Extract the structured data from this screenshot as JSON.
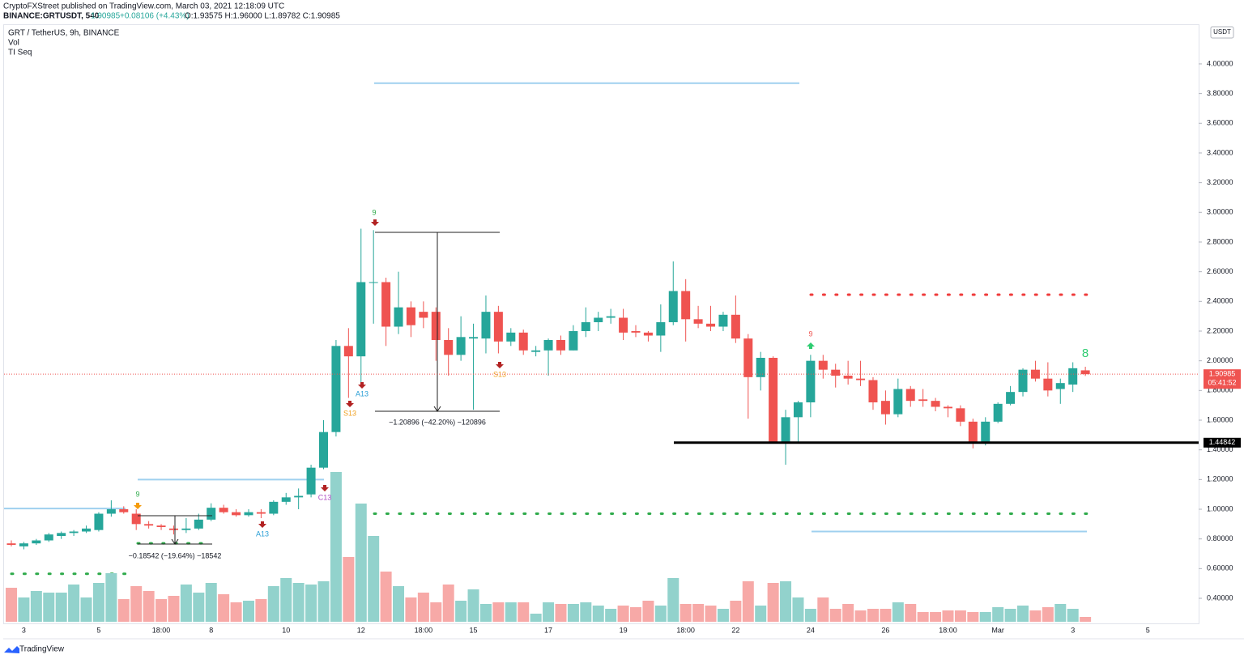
{
  "header": {
    "published": "CryptoFXStreet published on TradingView.com, March 03, 2021 12:18:09 UTC",
    "symbol": "BINANCE:GRTUSDT, 540",
    "last": "1.90985",
    "change": "+0.08106 (+4.43%)",
    "ohlc": "O:1.93575 H:1.96000 L:1.89782 C:1.90985"
  },
  "footer": {
    "brand": "TradingView"
  },
  "chart_data": {
    "type": "candlestick",
    "title": "GRT / TetherUS, 9h, BINANCE",
    "indicators": [
      "Vol",
      "TI Seq"
    ],
    "currency": "USDT",
    "categories": [
      null,
      "3",
      null,
      null,
      null,
      null,
      null,
      "5",
      null,
      null,
      null,
      null,
      "18:00",
      null,
      null,
      null,
      "8",
      null,
      null,
      null,
      null,
      null,
      "10",
      null,
      null,
      null,
      null,
      null,
      "12",
      null,
      null,
      null,
      null,
      "18:00",
      null,
      null,
      null,
      "15",
      null,
      null,
      null,
      null,
      null,
      "17",
      null,
      null,
      null,
      null,
      null,
      "19",
      null,
      null,
      null,
      null,
      "18:00",
      null,
      null,
      null,
      "22",
      null,
      null,
      null,
      null,
      null,
      "24",
      null,
      null,
      null,
      null,
      null,
      "26",
      null,
      null,
      null,
      null,
      "18:00",
      null,
      null,
      null,
      "Mar",
      null,
      null,
      null,
      null,
      null,
      "3",
      null,
      null,
      null,
      null,
      null,
      "5"
    ],
    "open": [
      0.77,
      0.75,
      0.77,
      0.79,
      0.82,
      0.84,
      0.85,
      0.86,
      0.97,
      1.0,
      0.97,
      0.9,
      0.89,
      0.87,
      0.86,
      0.87,
      0.93,
      1.01,
      0.98,
      0.96,
      0.98,
      0.97,
      1.05,
      1.08,
      1.1,
      1.28,
      1.52,
      2.1,
      2.03,
      2.53,
      2.53,
      2.23,
      2.36,
      2.33,
      2.33,
      2.14,
      2.04,
      2.15,
      2.15,
      2.33,
      2.13,
      2.19,
      2.06,
      2.07,
      2.14,
      2.07,
      2.2,
      2.26,
      2.29,
      2.29,
      2.2,
      2.19,
      2.17,
      2.26,
      2.47,
      2.28,
      2.25,
      2.23,
      2.31,
      2.15,
      1.89,
      2.02,
      1.45,
      1.62,
      1.72,
      2.0,
      1.94,
      1.9,
      1.88,
      1.87,
      1.73,
      1.64,
      1.81,
      1.74,
      1.73,
      1.69,
      1.68,
      1.59,
      1.45,
      1.59,
      1.71,
      1.79,
      1.94,
      1.88,
      1.81,
      1.84,
      1.93575,
      null,
      null,
      null,
      null,
      null
    ],
    "high": [
      0.79,
      0.78,
      0.8,
      0.84,
      0.85,
      0.86,
      0.89,
      0.98,
      1.06,
      1.02,
      1.0,
      0.92,
      0.9,
      0.89,
      0.94,
      0.97,
      1.04,
      1.03,
      1.0,
      1.0,
      1.0,
      1.06,
      1.11,
      1.14,
      1.3,
      1.6,
      2.14,
      2.22,
      2.89,
      2.88,
      2.56,
      2.6,
      2.4,
      2.4,
      2.36,
      2.22,
      2.3,
      2.25,
      2.44,
      2.37,
      2.22,
      2.21,
      2.1,
      2.15,
      2.17,
      2.24,
      2.36,
      2.33,
      2.35,
      2.35,
      2.24,
      2.2,
      2.38,
      2.67,
      2.55,
      2.37,
      2.37,
      2.33,
      2.44,
      2.18,
      2.06,
      2.03,
      1.67,
      1.73,
      2.04,
      2.04,
      1.98,
      2.0,
      2.0,
      1.89,
      1.8,
      1.88,
      1.83,
      1.81,
      1.75,
      1.7,
      1.7,
      1.61,
      1.62,
      1.72,
      1.83,
      1.95,
      2.0,
      1.99,
      1.88,
      1.99,
      1.96,
      null,
      null,
      null,
      null,
      null
    ],
    "low": [
      0.75,
      0.73,
      0.76,
      0.78,
      0.8,
      0.82,
      0.84,
      0.85,
      0.95,
      0.97,
      0.86,
      0.87,
      0.86,
      0.83,
      0.84,
      0.86,
      0.92,
      0.97,
      0.95,
      0.95,
      0.94,
      0.96,
      1.03,
      1.0,
      1.08,
      1.27,
      1.49,
      1.75,
      1.85,
      2.25,
      2.1,
      2.18,
      2.16,
      2.22,
      2.0,
      1.9,
      2.0,
      1.67,
      2.05,
      2.05,
      2.1,
      2.04,
      2.03,
      1.9,
      2.04,
      2.07,
      2.16,
      2.2,
      2.25,
      2.14,
      2.16,
      2.13,
      2.06,
      2.24,
      2.13,
      2.22,
      2.2,
      2.2,
      2.12,
      1.61,
      1.8,
      1.45,
      1.3,
      1.45,
      1.62,
      1.88,
      1.82,
      1.84,
      1.83,
      1.67,
      1.57,
      1.62,
      1.69,
      1.69,
      1.66,
      1.62,
      1.56,
      1.41,
      1.43,
      1.58,
      1.7,
      1.76,
      1.86,
      1.76,
      1.71,
      1.79,
      1.89782,
      null,
      null,
      null,
      null,
      null
    ],
    "close": [
      0.76,
      0.77,
      0.79,
      0.83,
      0.84,
      0.85,
      0.87,
      0.97,
      1.0,
      0.98,
      0.9,
      0.89,
      0.88,
      0.86,
      0.87,
      0.93,
      1.01,
      0.98,
      0.96,
      0.98,
      0.97,
      1.05,
      1.08,
      1.09,
      1.28,
      1.52,
      2.1,
      2.03,
      2.53,
      2.53,
      2.23,
      2.36,
      2.24,
      2.29,
      2.14,
      2.04,
      2.16,
      2.16,
      2.33,
      2.13,
      2.19,
      2.07,
      2.07,
      2.14,
      2.07,
      2.2,
      2.26,
      2.29,
      2.3,
      2.19,
      2.19,
      2.17,
      2.26,
      2.47,
      2.28,
      2.25,
      2.23,
      2.31,
      2.15,
      1.89,
      2.02,
      1.45,
      1.62,
      1.72,
      2.0,
      1.94,
      1.9,
      1.88,
      1.87,
      1.72,
      1.64,
      1.81,
      1.73,
      1.73,
      1.69,
      1.68,
      1.59,
      1.45,
      1.59,
      1.71,
      1.79,
      1.94,
      1.88,
      1.8,
      1.85,
      1.95,
      1.90985,
      null,
      null,
      null,
      null,
      null
    ],
    "volume": [
      42,
      30,
      38,
      36,
      36,
      46,
      30,
      48,
      60,
      28,
      44,
      38,
      28,
      32,
      46,
      36,
      48,
      34,
      24,
      26,
      28,
      44,
      54,
      48,
      46,
      50,
      185,
      80,
      146,
      106,
      62,
      44,
      30,
      36,
      24,
      46,
      26,
      40,
      22,
      24,
      24,
      24,
      10,
      24,
      22,
      22,
      24,
      20,
      16,
      20,
      18,
      26,
      20,
      54,
      22,
      22,
      20,
      16,
      26,
      50,
      20,
      48,
      50,
      30,
      16,
      30,
      16,
      22,
      14,
      16,
      16,
      24,
      22,
      12,
      12,
      14,
      14,
      12,
      12,
      18,
      16,
      20,
      14,
      18,
      22,
      16,
      6,
      null,
      null,
      null,
      null,
      null
    ],
    "colors": {
      "up": "#26a69a",
      "down": "#ef5350",
      "up_volume": "#92d2cc",
      "down_volume": "#f7a9a7"
    },
    "ylim": [
      0.242,
      4.256
    ],
    "yticks": [
      {
        "value": 0.4,
        "label": "0.40000"
      },
      {
        "value": 0.6,
        "label": "0.60000"
      },
      {
        "value": 0.8,
        "label": "0.80000"
      },
      {
        "value": 1.0,
        "label": "1.00000"
      },
      {
        "value": 1.2,
        "label": "1.20000"
      },
      {
        "value": 1.4,
        "label": "1.40000"
      },
      {
        "value": 1.6,
        "label": "1.60000"
      },
      {
        "value": 1.8,
        "label": "1.80000"
      },
      {
        "value": 2.0,
        "label": "2.00000"
      },
      {
        "value": 2.2,
        "label": "2.20000"
      },
      {
        "value": 2.4,
        "label": "2.40000"
      },
      {
        "value": 2.6,
        "label": "2.60000"
      },
      {
        "value": 2.8,
        "label": "2.80000"
      },
      {
        "value": 3.0,
        "label": "3.00000"
      },
      {
        "value": 3.2,
        "label": "3.20000"
      },
      {
        "value": 3.4,
        "label": "3.40000"
      },
      {
        "value": 3.6,
        "label": "3.60000"
      },
      {
        "value": 3.8,
        "label": "3.80000"
      },
      {
        "value": 4.0,
        "label": "4.00000"
      }
    ],
    "grid": false,
    "last_price": {
      "value": 1.90985,
      "label": "1.90985"
    },
    "countdown": "05:41:52",
    "level": {
      "value": 1.44842,
      "label": "1.44842"
    },
    "support_lines": [
      3.87,
      1.2,
      1.005,
      0.85
    ],
    "dotted_levels": [
      0.97,
      0.77,
      0.565,
      2.445
    ],
    "measures": [
      "−1.20896 (−42.20%) −120896",
      "−0.18542 (−19.64%) −18542"
    ],
    "td_labels": [
      "9",
      "9",
      "9",
      "8",
      "A13",
      "S13",
      "S13",
      "C13",
      "A13"
    ]
  }
}
